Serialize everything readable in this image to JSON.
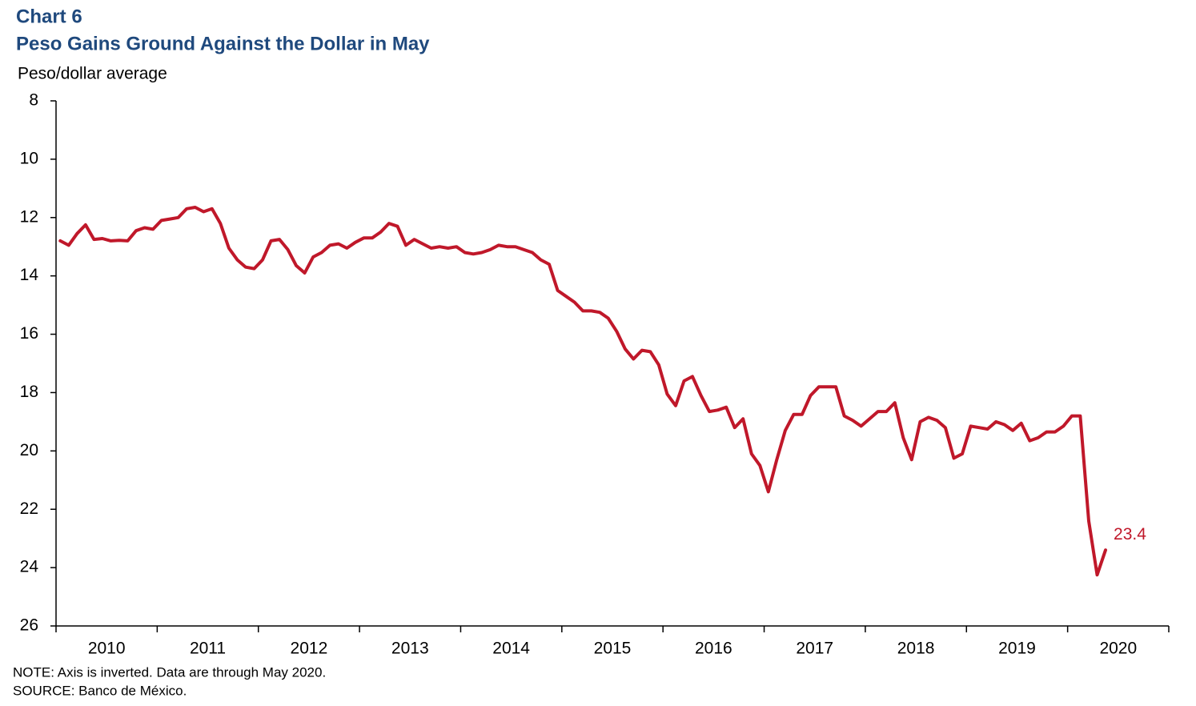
{
  "chart_data": {
    "type": "line",
    "chart_number": "Chart 6",
    "title": "Peso Gains Ground Against the Dollar in May",
    "y_axis_label": "Peso/dollar average",
    "notes": [
      "NOTE: Axis is inverted. Data are through May 2020.",
      "SOURCE: Banco de México."
    ],
    "categories": [
      "2010",
      "2011",
      "2012",
      "2013",
      "2014",
      "2015",
      "2016",
      "2017",
      "2018",
      "2019",
      "2020"
    ],
    "color": "#c0182a",
    "values": [
      [
        12.8,
        12.95,
        12.55,
        12.25,
        12.75,
        12.72,
        12.8,
        12.78,
        12.8,
        12.45,
        12.35,
        12.4
      ],
      [
        12.1,
        12.05,
        12.0,
        11.7,
        11.65,
        11.8,
        11.7,
        12.2,
        13.05,
        13.45,
        13.7,
        13.75
      ],
      [
        13.45,
        12.8,
        12.75,
        13.1,
        13.65,
        13.9,
        13.35,
        13.2,
        12.95,
        12.9,
        13.05,
        12.85
      ],
      [
        12.7,
        12.7,
        12.5,
        12.2,
        12.3,
        12.95,
        12.75,
        12.9,
        13.05,
        13.0,
        13.05,
        13.0
      ],
      [
        13.2,
        13.25,
        13.2,
        13.1,
        12.95,
        13.0,
        13.0,
        13.1,
        13.2,
        13.45,
        13.6,
        14.5
      ],
      [
        14.7,
        14.9,
        15.2,
        15.2,
        15.25,
        15.45,
        15.9,
        16.5,
        16.85,
        16.55,
        16.6,
        17.05
      ],
      [
        18.05,
        18.45,
        17.6,
        17.45,
        18.1,
        18.65,
        18.6,
        18.5,
        19.2,
        18.9,
        20.1,
        20.5
      ],
      [
        21.4,
        20.3,
        19.3,
        18.75,
        18.75,
        18.1,
        17.8,
        17.8,
        17.8,
        18.8,
        18.95,
        19.15
      ],
      [
        18.9,
        18.65,
        18.65,
        18.35,
        19.55,
        20.3,
        19.0,
        18.85,
        18.95,
        19.2,
        20.25,
        20.1
      ],
      [
        19.15,
        19.2,
        19.25,
        19.0,
        19.1,
        19.3,
        19.05,
        19.65,
        19.55,
        19.35,
        19.35,
        19.15
      ],
      [
        18.8,
        18.8,
        22.4,
        24.25,
        23.4
      ]
    ],
    "ylim": [
      8,
      26
    ],
    "yticks": [
      8,
      10,
      12,
      14,
      16,
      18,
      20,
      22,
      24,
      26
    ],
    "inverted": true
  }
}
